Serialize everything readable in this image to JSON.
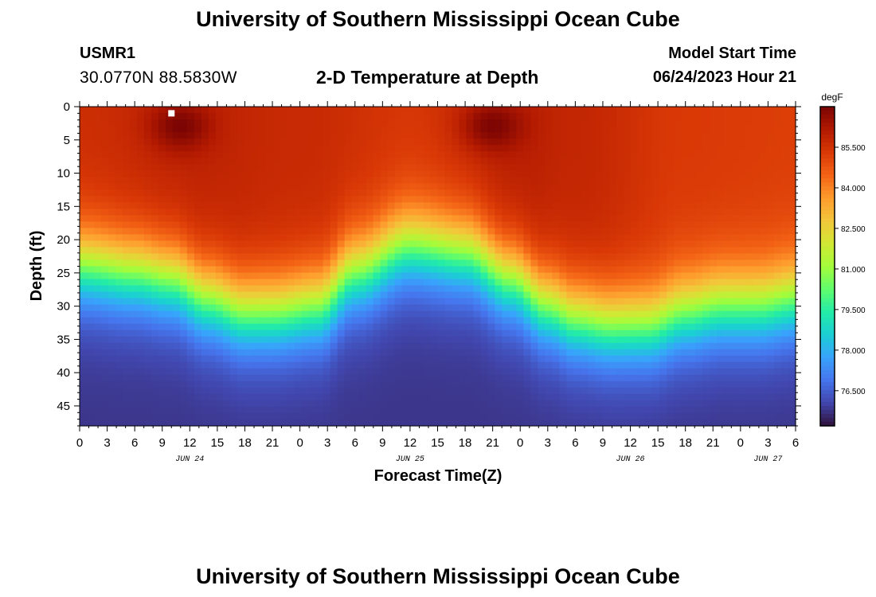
{
  "header": {
    "title": "University of Southern Mississippi Ocean Cube",
    "station": "USMR1",
    "coordinates": "30.0770N  88.5830W",
    "plot_title": "2-D Temperature at Depth",
    "model_start_label": "Model Start Time",
    "model_start_value": "06/24/2023 Hour 21"
  },
  "footer": {
    "title": "University of Southern Mississippi Ocean Cube"
  },
  "colors": {
    "palette": [
      "#30123b",
      "#4145ab",
      "#4675ed",
      "#39a2fc",
      "#1bcfd4",
      "#24eca6",
      "#61fc6c",
      "#a4fc3b",
      "#d1e834",
      "#f3c63a",
      "#fe9b2d",
      "#f36315",
      "#d93806",
      "#b11901",
      "#7a0403"
    ]
  },
  "chart_data": {
    "type": "heatmap",
    "title": "2-D Temperature at Depth",
    "xlabel": "Forecast Time(Z)",
    "ylabel": "Depth (ft)",
    "x_ticks": [
      "0",
      "3",
      "6",
      "9",
      "12",
      "15",
      "18",
      "21",
      "0",
      "3",
      "6",
      "9",
      "12",
      "15",
      "18",
      "21",
      "0",
      "3",
      "6",
      "9",
      "12",
      "15",
      "18",
      "21",
      "0",
      "3",
      "6"
    ],
    "x_range_hours": [
      0,
      78
    ],
    "date_labels": [
      {
        "label": "JUN 24",
        "hour": 12
      },
      {
        "label": "JUN 25",
        "hour": 36
      },
      {
        "label": "JUN 26",
        "hour": 60
      },
      {
        "label": "JUN 27",
        "hour": 75
      }
    ],
    "y_ticks": [
      0,
      5,
      10,
      15,
      20,
      25,
      30,
      35,
      40,
      45
    ],
    "y_range_ft": [
      0,
      48
    ],
    "colorbar": {
      "label": "degF",
      "ticks": [
        "85.500",
        "84.000",
        "82.500",
        "81.000",
        "79.500",
        "78.000",
        "76.500"
      ],
      "tick_values": [
        85.5,
        84.0,
        82.5,
        81.0,
        79.5,
        78.0,
        76.5
      ],
      "range": [
        75.2,
        87.0
      ]
    },
    "thermocline_depth_ft": {
      "hours": [
        0,
        6,
        10,
        14,
        18,
        21,
        26,
        30,
        36,
        42,
        47,
        51,
        54,
        58,
        62,
        66,
        70,
        74,
        78
      ],
      "depth": [
        24,
        25,
        26,
        29,
        31,
        31,
        30,
        25,
        21,
        22,
        26,
        30,
        32,
        33,
        33,
        31,
        30,
        30,
        29
      ]
    },
    "surface_temp_degF": {
      "hours": [
        0,
        12,
        24,
        36,
        48,
        54,
        66,
        78
      ],
      "values": [
        85.6,
        85.9,
        85.7,
        85.4,
        86.0,
        85.8,
        85.3,
        85.2
      ]
    },
    "warm_cores": [
      {
        "hour": 11,
        "depth_ft": 3,
        "degF": 87.0
      },
      {
        "hour": 45,
        "depth_ft": 3,
        "degF": 87.0
      }
    ],
    "bottom_temp_degF": 75.8,
    "marker": {
      "hour": 10,
      "depth_ft": 1,
      "color": "#ffffff"
    }
  }
}
